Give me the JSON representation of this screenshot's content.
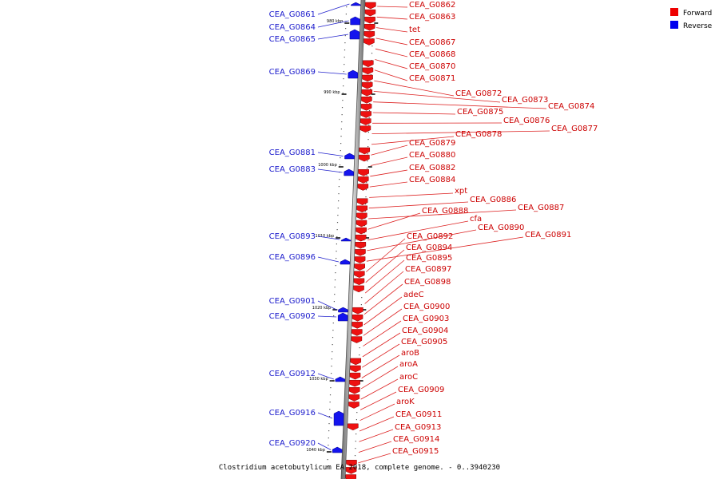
{
  "caption": "Clostridium acetobutylicum EA 2018, complete genome. - 0..3940230",
  "legend": [
    {
      "label": "Forward",
      "color": "#ee0000"
    },
    {
      "label": "Reverse",
      "color": "#0000ee"
    }
  ],
  "ticks": [
    "980 kbp",
    "990 kbp",
    "1000 kbp",
    "1010 kbp",
    "1020 kbp",
    "1030 kbp",
    "1040 kbp"
  ],
  "forward_genes": [
    "CEA_G0862",
    "CEA_G0863",
    "tet",
    "CEA_G0867",
    "CEA_G0868",
    "CEA_G0870",
    "CEA_G0871",
    "CEA_G0872",
    "CEA_G0873",
    "CEA_G0874",
    "CEA_G0875",
    "CEA_G0876",
    "CEA_G0877",
    "CEA_G0878",
    "CEA_G0879",
    "CEA_G0880",
    "CEA_G0882",
    "CEA_G0884",
    "xpt",
    "CEA_G0886",
    "CEA_G0887",
    "CEA_G0888",
    "cfa",
    "CEA_G0890",
    "CEA_G0891",
    "CEA_G0892",
    "CEA_G0894",
    "CEA_G0895",
    "CEA_G0897",
    "CEA_G0898",
    "adeC",
    "CEA_G0900",
    "CEA_G0903",
    "CEA_G0904",
    "CEA_G0905",
    "aroB",
    "aroA",
    "aroC",
    "CEA_G0909",
    "aroK",
    "CEA_G0911",
    "CEA_G0913",
    "CEA_G0914",
    "CEA_G0915"
  ],
  "reverse_genes": [
    "CEA_G0861",
    "CEA_G0864",
    "CEA_G0865",
    "CEA_G0869",
    "CEA_G0881",
    "CEA_G0883",
    "CEA_G0893",
    "CEA_G0896",
    "CEA_G0901",
    "CEA_G0902",
    "CEA_G0912",
    "CEA_G0916",
    "CEA_G0920"
  ]
}
